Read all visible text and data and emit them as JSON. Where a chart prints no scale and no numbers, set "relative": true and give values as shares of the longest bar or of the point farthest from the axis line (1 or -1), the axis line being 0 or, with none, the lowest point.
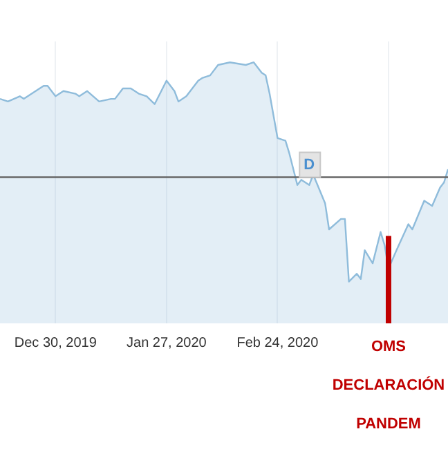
{
  "chart_data": {
    "type": "area",
    "relative": true,
    "grid": "x",
    "legend": false,
    "marker": "none",
    "x": [
      "2019-12-16",
      "2019-12-18",
      "2019-12-21",
      "2019-12-22",
      "2019-12-27",
      "2019-12-28",
      "2019-12-30",
      "2020-01-01",
      "2020-01-04",
      "2020-01-05",
      "2020-01-07",
      "2020-01-10",
      "2020-01-13",
      "2020-01-14",
      "2020-01-16",
      "2020-01-18",
      "2020-01-20",
      "2020-01-22",
      "2020-01-24",
      "2020-01-27",
      "2020-01-29",
      "2020-01-30",
      "2020-02-01",
      "2020-02-04",
      "2020-02-05",
      "2020-02-07",
      "2020-02-09",
      "2020-02-12",
      "2020-02-16",
      "2020-02-18",
      "2020-02-20",
      "2020-02-21",
      "2020-02-22",
      "2020-02-24",
      "2020-02-26",
      "2020-02-27",
      "2020-02-29",
      "2020-03-01",
      "2020-03-03",
      "2020-03-04",
      "2020-03-07",
      "2020-03-08",
      "2020-03-11",
      "2020-03-12",
      "2020-03-13",
      "2020-03-15",
      "2020-03-16",
      "2020-03-17",
      "2020-03-19",
      "2020-03-21",
      "2020-03-22",
      "2020-03-23",
      "2020-03-25",
      "2020-03-28",
      "2020-03-29",
      "2020-04-01",
      "2020-04-03",
      "2020-04-05",
      "2020-04-06",
      "2020-04-07"
    ],
    "series": [
      {
        "color": "#8fbcdb",
        "values": [
          0.86,
          0.85,
          0.87,
          0.86,
          0.91,
          0.91,
          0.87,
          0.89,
          0.88,
          0.87,
          0.89,
          0.85,
          0.86,
          0.86,
          0.9,
          0.9,
          0.88,
          0.87,
          0.84,
          0.93,
          0.89,
          0.85,
          0.87,
          0.93,
          0.94,
          0.95,
          0.99,
          1,
          0.99,
          1,
          0.96,
          0.95,
          0.88,
          0.71,
          0.7,
          0.65,
          0.53,
          0.55,
          0.53,
          0.57,
          0.46,
          0.36,
          0.4,
          0.4,
          0.16,
          0.19,
          0.17,
          0.28,
          0.23,
          0.35,
          0.3,
          0.21,
          0.28,
          0.38,
          0.36,
          0.47,
          0.45,
          0.52,
          0.54,
          0.59
        ]
      }
    ],
    "xlim": [
      "2019-12-16",
      "2020-04-07"
    ],
    "xticks": [
      {
        "value": "2019-12-30",
        "label": "Dec 30, 2019"
      },
      {
        "value": "2020-01-27",
        "label": "Jan 27, 2020"
      },
      {
        "value": "2020-02-24",
        "label": "Feb 24, 2020"
      },
      {
        "value": "2020-03-23",
        "label": null
      }
    ],
    "ref_lines": [
      {
        "axis": "y",
        "value": 0.56,
        "color": "#666666"
      },
      {
        "axis": "x",
        "value": "2020-03-23",
        "label": "OMS DECLARACIÓN PANDEM",
        "color": "#c00000"
      }
    ],
    "annotations": [
      {
        "text": "D",
        "x": "2020-03-03",
        "y": 0.56
      }
    ]
  }
}
